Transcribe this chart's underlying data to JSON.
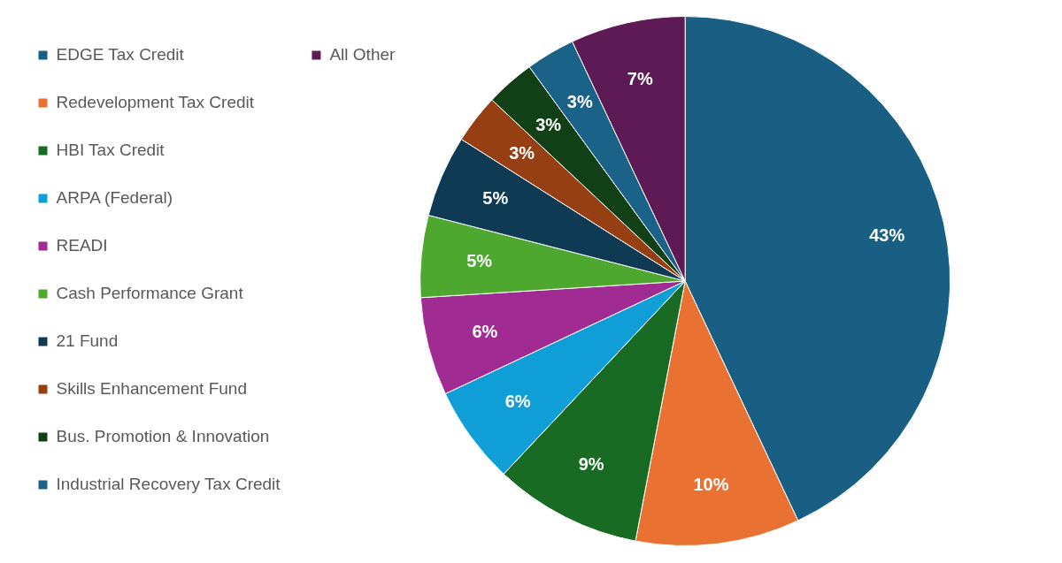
{
  "chart_data": {
    "type": "pie",
    "categories": [
      "EDGE Tax Credit",
      "Redevelopment Tax Credit",
      "HBI Tax Credit",
      "ARPA (Federal)",
      "READI",
      "Cash Performance Grant",
      "21 Fund",
      "Skills Enhancement Fund",
      "Bus. Promotion & Innovation",
      "Industrial Recovery Tax Credit",
      "All Other"
    ],
    "values": [
      43,
      10,
      9,
      6,
      6,
      5,
      5,
      3,
      3,
      3,
      7
    ],
    "value_labels": [
      "43%",
      "10%",
      "9%",
      "6%",
      "6%",
      "5%",
      "5%",
      "3%",
      "3%",
      "3%",
      "7%"
    ],
    "colors": [
      "#195e83",
      "#e97132",
      "#196b24",
      "#0f9ed5",
      "#a02b93",
      "#4ea72e",
      "#0e3a53",
      "#953f13",
      "#124016",
      "#1a6288",
      "#5e1a55"
    ],
    "legend": "left"
  }
}
